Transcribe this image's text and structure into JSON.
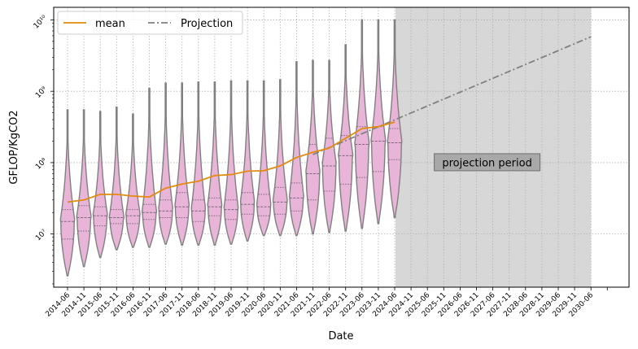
{
  "chart_data": {
    "type": "violin",
    "xlabel": "Date",
    "ylabel": "GFLOP/KgCO2",
    "yscale": "log",
    "y_ticks": [
      {
        "value": 10000000,
        "label": "10⁷"
      },
      {
        "value": 100000000,
        "label": "10⁸"
      },
      {
        "value": 1000000000,
        "label": "10⁹"
      },
      {
        "value": 10000000000,
        "label": "10¹⁰"
      }
    ],
    "ylim": [
      1800000,
      15000000000
    ],
    "grid": true,
    "legend_position": "top-left",
    "categories": [
      "2014-06",
      "2014-11",
      "2015-06",
      "2015-11",
      "2016-06",
      "2016-11",
      "2017-06",
      "2017-11",
      "2018-06",
      "2018-11",
      "2019-06",
      "2019-11",
      "2020-06",
      "2020-11",
      "2021-06",
      "2021-11",
      "2022-06",
      "2022-11",
      "2023-06",
      "2023-11",
      "2024-06",
      "2024-11",
      "2025-06",
      "2025-11",
      "2026-06",
      "2026-11",
      "2027-06",
      "2027-11",
      "2028-06",
      "2028-11",
      "2029-06",
      "2029-11",
      "2030-06"
    ],
    "violins": [
      {
        "category": "2014-06",
        "min": 2600000,
        "q1": 8500000,
        "median": 15000000,
        "q3": 22000000,
        "max": 550000000
      },
      {
        "category": "2014-11",
        "min": 3500000,
        "q1": 11000000,
        "median": 17000000,
        "q3": 25000000,
        "max": 550000000
      },
      {
        "category": "2015-06",
        "min": 4700000,
        "q1": 13000000,
        "median": 18000000,
        "q3": 24000000,
        "max": 520000000
      },
      {
        "category": "2015-11",
        "min": 6000000,
        "q1": 14000000,
        "median": 17000000,
        "q3": 22000000,
        "max": 600000000
      },
      {
        "category": "2016-06",
        "min": 6500000,
        "q1": 14000000,
        "median": 18000000,
        "q3": 22000000,
        "max": 480000000
      },
      {
        "category": "2016-11",
        "min": 6500000,
        "q1": 16000000,
        "median": 20000000,
        "q3": 26000000,
        "max": 1100000000
      },
      {
        "category": "2017-06",
        "min": 7200000,
        "q1": 17000000,
        "median": 21000000,
        "q3": 30000000,
        "max": 1300000000
      },
      {
        "category": "2017-11",
        "min": 7000000,
        "q1": 17000000,
        "median": 24000000,
        "q3": 38000000,
        "max": 1300000000
      },
      {
        "category": "2018-06",
        "min": 7000000,
        "q1": 15000000,
        "median": 21000000,
        "q3": 30000000,
        "max": 1350000000
      },
      {
        "category": "2018-11",
        "min": 7000000,
        "q1": 18000000,
        "median": 24000000,
        "q3": 32000000,
        "max": 1350000000
      },
      {
        "category": "2019-06",
        "min": 7200000,
        "q1": 16000000,
        "median": 22000000,
        "q3": 30000000,
        "max": 1400000000
      },
      {
        "category": "2019-11",
        "min": 8000000,
        "q1": 19000000,
        "median": 26000000,
        "q3": 38000000,
        "max": 1400000000
      },
      {
        "category": "2020-06",
        "min": 9500000,
        "q1": 18000000,
        "median": 24000000,
        "q3": 36000000,
        "max": 1400000000
      },
      {
        "category": "2020-11",
        "min": 9500000,
        "q1": 19000000,
        "median": 28000000,
        "q3": 45000000,
        "max": 1450000000
      },
      {
        "category": "2021-06",
        "min": 9500000,
        "q1": 21000000,
        "median": 32000000,
        "q3": 52000000,
        "max": 2600000000
      },
      {
        "category": "2021-11",
        "min": 10000000,
        "q1": 30000000,
        "median": 70000000,
        "q3": 180000000,
        "max": 2700000000
      },
      {
        "category": "2022-06",
        "min": 10500000,
        "q1": 40000000,
        "median": 90000000,
        "q3": 220000000,
        "max": 2700000000
      },
      {
        "category": "2022-11",
        "min": 11000000,
        "q1": 50000000,
        "median": 125000000,
        "q3": 240000000,
        "max": 4500000000
      },
      {
        "category": "2023-06",
        "min": 12000000,
        "q1": 62000000,
        "median": 180000000,
        "q3": 320000000,
        "max": 10000000000
      },
      {
        "category": "2023-11",
        "min": 14000000,
        "q1": 75000000,
        "median": 200000000,
        "q3": 320000000,
        "max": 10000000000
      },
      {
        "category": "2024-06",
        "min": 17000000,
        "q1": 110000000,
        "median": 190000000,
        "q3": 300000000,
        "max": 10000000000
      }
    ],
    "series": [
      {
        "name": "mean",
        "color": "#e38b0f",
        "style": "solid",
        "points": [
          {
            "x": "2014-06",
            "y": 28000000
          },
          {
            "x": "2014-11",
            "y": 30000000
          },
          {
            "x": "2015-06",
            "y": 36000000
          },
          {
            "x": "2015-11",
            "y": 36000000
          },
          {
            "x": "2016-06",
            "y": 34000000
          },
          {
            "x": "2016-11",
            "y": 33000000
          },
          {
            "x": "2017-06",
            "y": 44000000
          },
          {
            "x": "2017-11",
            "y": 50000000
          },
          {
            "x": "2018-06",
            "y": 55000000
          },
          {
            "x": "2018-11",
            "y": 66000000
          },
          {
            "x": "2019-06",
            "y": 68000000
          },
          {
            "x": "2019-11",
            "y": 76000000
          },
          {
            "x": "2020-06",
            "y": 77000000
          },
          {
            "x": "2020-11",
            "y": 90000000
          },
          {
            "x": "2021-06",
            "y": 118000000
          },
          {
            "x": "2021-11",
            "y": 140000000
          },
          {
            "x": "2022-06",
            "y": 160000000
          },
          {
            "x": "2022-11",
            "y": 220000000
          },
          {
            "x": "2023-06",
            "y": 300000000
          },
          {
            "x": "2023-11",
            "y": 320000000
          },
          {
            "x": "2024-06",
            "y": 370000000
          }
        ]
      },
      {
        "name": "Projection",
        "color": "#808080",
        "style": "dashdot",
        "points": [
          {
            "x": "2021-11",
            "y": 130000000
          },
          {
            "x": "2030-06",
            "y": 5800000000
          }
        ]
      }
    ],
    "shaded_region": {
      "from": "2024-11",
      "to": "2030-06",
      "color": "#d7d7d7"
    },
    "annotation": {
      "text": "projection period",
      "x": "2027-06",
      "y": 100000000
    }
  },
  "style": {
    "violin_fill": "#e8b4d8",
    "violin_edge": "#808080",
    "grid_color": "#b0b0b0"
  }
}
